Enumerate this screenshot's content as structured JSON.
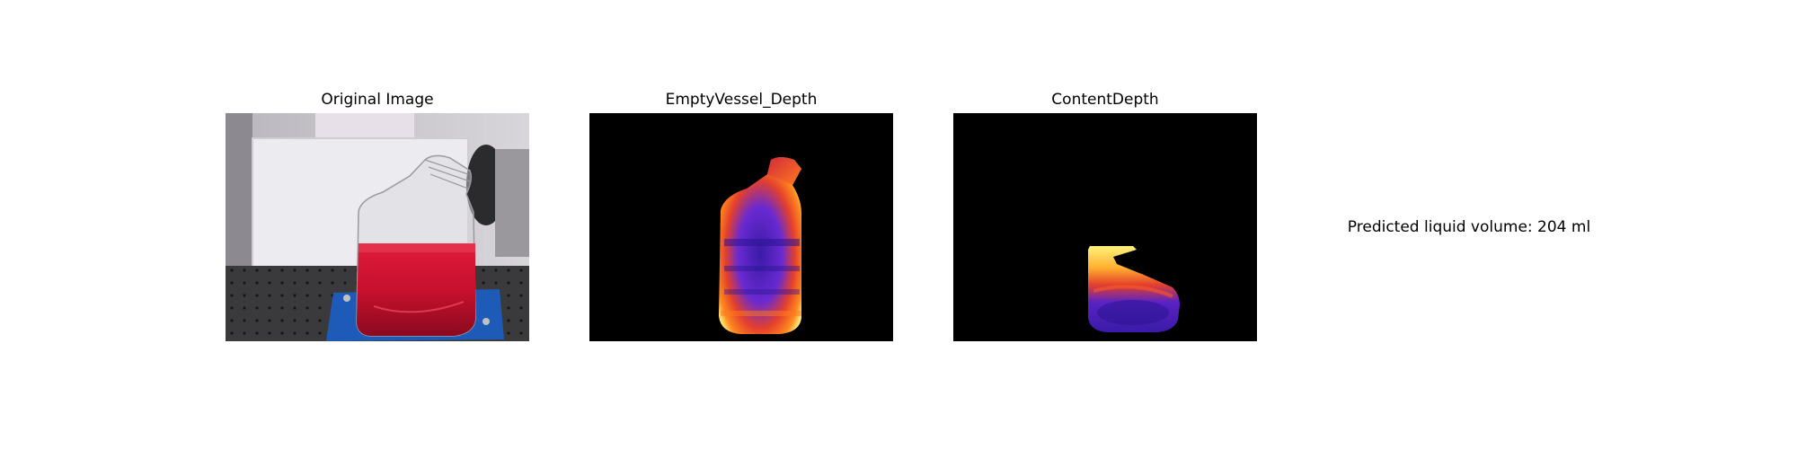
{
  "panels": [
    {
      "title": "Original Image",
      "icon": "photo-of-red-liquid-bottle"
    },
    {
      "title": "EmptyVessel_Depth",
      "icon": "depth-map-empty-bottle"
    },
    {
      "title": "ContentDepth",
      "icon": "depth-map-liquid-content"
    }
  ],
  "prediction": {
    "text": "Predicted liquid volume: 204 ml"
  },
  "colors": {
    "liquid": "#c8102e",
    "base_plate": "#1e5bb8",
    "depth_background": "#000000",
    "depth_far": "#3a1aa8",
    "depth_mid": "#ff6a1a",
    "depth_near": "#fff27a"
  }
}
